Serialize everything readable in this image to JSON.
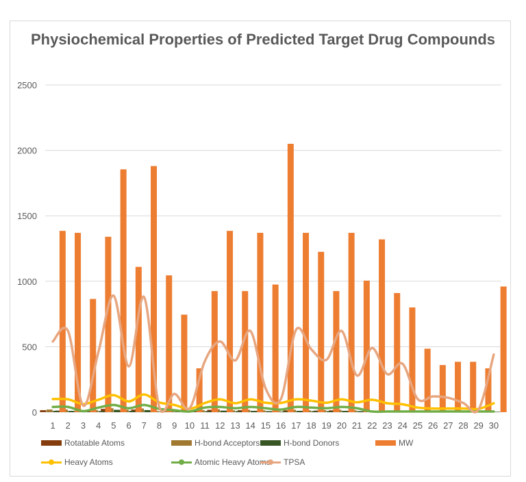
{
  "chart_data": {
    "type": "bar",
    "title": "Physiochemical Properties of Predicted Target Drug Compounds",
    "xlabel": "",
    "ylabel": "",
    "ylim": [
      0,
      2500
    ],
    "yticks": [
      "0",
      "500",
      "1000",
      "1500",
      "2000",
      "2500"
    ],
    "categories": [
      "1",
      "2",
      "3",
      "4",
      "5",
      "6",
      "7",
      "8",
      "9",
      "10",
      "11",
      "12",
      "13",
      "14",
      "15",
      "16",
      "17",
      "18",
      "19",
      "20",
      "21",
      "22",
      "23",
      "24",
      "25",
      "26",
      "27",
      "28",
      "29",
      "30"
    ],
    "legend_position": "bottom",
    "grid": true,
    "series": [
      {
        "name": "Rotatable Atoms",
        "kind": "bar",
        "color": "#843c0c",
        "values": [
          15,
          12,
          4,
          10,
          25,
          12,
          20,
          6,
          5,
          3,
          12,
          18,
          10,
          15,
          10,
          5,
          14,
          10,
          12,
          14,
          10,
          8,
          5,
          5,
          3,
          2,
          2,
          2,
          1,
          4
        ]
      },
      {
        "name": "H-bond Acceptors",
        "kind": "bar",
        "color": "#a07830",
        "values": [
          20,
          20,
          5,
          15,
          30,
          18,
          28,
          8,
          8,
          4,
          15,
          22,
          14,
          18,
          14,
          8,
          18,
          14,
          15,
          18,
          14,
          12,
          8,
          8,
          5,
          4,
          4,
          4,
          2,
          6
        ]
      },
      {
        "name": "H-bond Donors",
        "kind": "bar",
        "color": "#375623",
        "values": [
          10,
          10,
          3,
          8,
          18,
          10,
          16,
          4,
          4,
          2,
          8,
          12,
          8,
          10,
          8,
          5,
          10,
          8,
          8,
          10,
          8,
          6,
          4,
          4,
          3,
          2,
          2,
          2,
          1,
          3
        ]
      },
      {
        "name": "MW",
        "kind": "bar",
        "color": "#ed7d31",
        "values": [
          1385,
          1370,
          865,
          1340,
          1855,
          1110,
          1880,
          1045,
          745,
          335,
          925,
          1385,
          925,
          1370,
          975,
          2050,
          1370,
          1225,
          925,
          1370,
          1005,
          1320,
          910,
          800,
          485,
          360,
          385,
          385,
          335,
          960
        ]
      },
      {
        "name": "Heavy Atoms",
        "kind": "line",
        "color": "#ffc000",
        "values": [
          100,
          98,
          62,
          95,
          130,
          82,
          135,
          75,
          55,
          25,
          70,
          98,
          68,
          98,
          72,
          70,
          98,
          88,
          72,
          98,
          75,
          95,
          68,
          60,
          35,
          28,
          28,
          28,
          25,
          68
        ]
      },
      {
        "name": "Atomic Heavy Atoms",
        "kind": "line",
        "color": "#70ad47",
        "values": [
          40,
          40,
          8,
          35,
          55,
          30,
          55,
          25,
          15,
          5,
          35,
          40,
          30,
          40,
          30,
          20,
          40,
          35,
          30,
          40,
          30,
          5,
          5,
          5,
          5,
          5,
          5,
          5,
          5,
          5
        ]
      },
      {
        "name": "TPSA",
        "kind": "line",
        "color": "#e7a680",
        "values": [
          540,
          620,
          50,
          460,
          890,
          350,
          880,
          40,
          140,
          30,
          390,
          540,
          395,
          620,
          180,
          100,
          630,
          480,
          400,
          620,
          280,
          490,
          290,
          370,
          100,
          120,
          110,
          70,
          20,
          440
        ]
      }
    ]
  }
}
